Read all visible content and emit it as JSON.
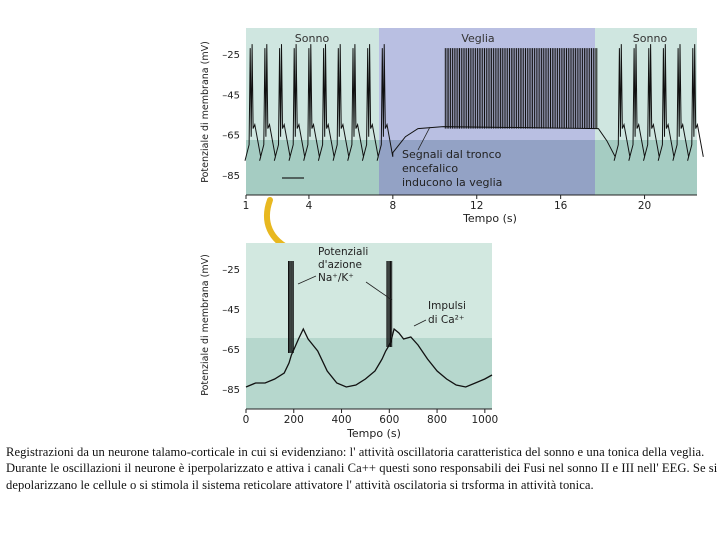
{
  "chart_data": [
    {
      "type": "line",
      "ylabel": "Potenziale di membrana (mV)",
      "xlabel": "Tempo (s)",
      "x_ticks": [
        1,
        4,
        8,
        12,
        16,
        20
      ],
      "y_ticks": [
        -25,
        -45,
        -65,
        -85
      ],
      "xlim": [
        1,
        22.5
      ],
      "ylim": [
        -95,
        -12
      ],
      "regions": [
        {
          "label": "Sonno",
          "x": [
            1,
            8
          ],
          "color": "#cfe6e0"
        },
        {
          "label": "Veglia",
          "x": [
            8,
            18
          ],
          "color": "#b9bfe2"
        },
        {
          "label": "Sonno",
          "x": [
            18,
            22.5
          ],
          "color": "#cfe6e0"
        }
      ],
      "annotation": [
        "Segnali dal tronco",
        "encefalico",
        "inducono la veglia"
      ],
      "annotation_point": [
        12,
        -65
      ],
      "series": [
        {
          "values_description": "",
          "burst_times_s": [
            1.2,
            1.9,
            2.6,
            3.3,
            4.0,
            4.7,
            5.4,
            6.1,
            6.8,
            7.5,
            18.8,
            19.5,
            20.2,
            20.9,
            21.6,
            22.3
          ],
          "hyperpolarized_mV": -78,
          "spike_peak_mV": -22,
          "wake_plateau_mV": -62,
          "wake_spike_range_s": [
            10.5,
            17.8
          ]
        }
      ]
    },
    {
      "type": "line",
      "ylabel": "Potenziale di membrana (mV)",
      "xlabel": "Tempo (s)",
      "x_ticks": [
        0,
        200,
        400,
        600,
        800,
        1000
      ],
      "y_ticks": [
        -25,
        -45,
        -65,
        -85
      ],
      "xlim": [
        0,
        1030
      ],
      "ylim": [
        -95,
        -12
      ],
      "annotations": [
        {
          "lines": [
            "Potenziali",
            "d'azione",
            "Na⁺/K⁺"
          ],
          "target_x": 190
        },
        {
          "lines": [
            "Impulsi",
            "di Ca²⁺"
          ],
          "target_x": 680
        }
      ],
      "trace": [
        [
          0,
          -84
        ],
        [
          40,
          -82
        ],
        [
          80,
          -82
        ],
        [
          120,
          -80
        ],
        [
          160,
          -77
        ],
        [
          180,
          -72
        ],
        [
          190,
          -68
        ],
        [
          205,
          -64
        ],
        [
          220,
          -60
        ],
        [
          240,
          -55
        ],
        [
          260,
          -60
        ],
        [
          280,
          -63
        ],
        [
          300,
          -66
        ],
        [
          340,
          -76
        ],
        [
          380,
          -82
        ],
        [
          420,
          -84
        ],
        [
          460,
          -83
        ],
        [
          500,
          -80
        ],
        [
          540,
          -76
        ],
        [
          570,
          -70
        ],
        [
          585,
          -66
        ],
        [
          605,
          -62
        ],
        [
          620,
          -55
        ],
        [
          640,
          -57
        ],
        [
          660,
          -60
        ],
        [
          690,
          -59
        ],
        [
          720,
          -63
        ],
        [
          760,
          -70
        ],
        [
          800,
          -76
        ],
        [
          840,
          -80
        ],
        [
          880,
          -83
        ],
        [
          920,
          -84
        ],
        [
          960,
          -82
        ],
        [
          1000,
          -80
        ],
        [
          1030,
          -78
        ]
      ],
      "spikes": [
        {
          "x": 188,
          "peak_mV": -21,
          "base_mV": -67
        },
        {
          "x": 600,
          "peak_mV": -21,
          "base_mV": -64
        }
      ]
    }
  ],
  "caption": "Registrazioni da un neurone talamo-corticale in cui si evidenziano: l' attività oscillatoria caratteristica del sonno e una tonica della veglia. Durante le oscillazioni il neurone è iperpolarizzato e attiva i canali Ca++ questi sono responsabili dei Fusi nel sonno II e III nell' EEG. Se si depolarizzano le cellule o si stimola il sistema reticolare attivatore l' attività oscilatoria si trsforma in attività tonica."
}
